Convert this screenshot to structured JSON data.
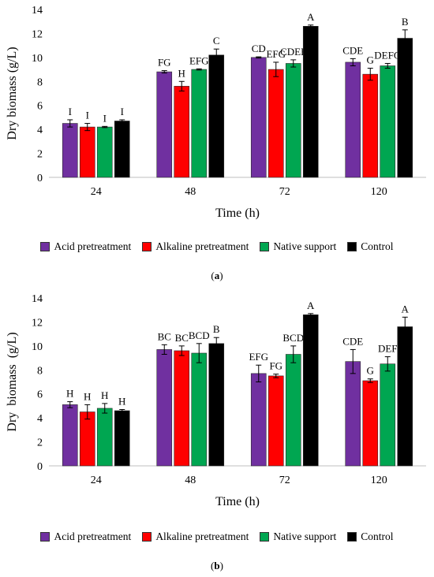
{
  "chart_data": [
    {
      "type": "bar",
      "panel_label": "a",
      "categories": [
        "24",
        "48",
        "72",
        "120"
      ],
      "xlabel": "Time (h)",
      "ylabel": "Dry biomass (g/L)",
      "ylim": [
        0,
        14
      ],
      "yticks": [
        "0",
        "2",
        "4",
        "6",
        "8",
        "10",
        "12",
        "14"
      ],
      "grid": false,
      "legend_position": "bottom",
      "series": [
        {
          "name": "Acid pretreatment",
          "color": "#7030A0",
          "values": [
            4.5,
            8.8,
            10.0,
            9.6
          ],
          "errors": [
            0.3,
            0.1,
            0.05,
            0.3
          ],
          "labels": [
            "I",
            "FG",
            "CD",
            "CDE"
          ]
        },
        {
          "name": "Alkaline pretreatment",
          "color": "#FF0000",
          "values": [
            4.2,
            7.6,
            9.0,
            8.6
          ],
          "errors": [
            0.3,
            0.4,
            0.6,
            0.5
          ],
          "labels": [
            "I",
            "H",
            "EFG",
            "G"
          ]
        },
        {
          "name": "Native support",
          "color": "#00A651",
          "values": [
            4.2,
            9.0,
            9.5,
            9.3
          ],
          "errors": [
            0.05,
            0.05,
            0.3,
            0.2
          ],
          "labels": [
            "I",
            "EFG",
            "CDEF",
            "DEFG"
          ]
        },
        {
          "name": "Control",
          "color": "#000000",
          "values": [
            4.7,
            10.2,
            12.6,
            11.6
          ],
          "errors": [
            0.1,
            0.5,
            0.1,
            0.7
          ],
          "labels": [
            "I",
            "C",
            "A",
            "B"
          ]
        }
      ]
    },
    {
      "type": "bar",
      "panel_label": "b",
      "categories": [
        "24",
        "48",
        "72",
        "120"
      ],
      "xlabel": "Time (h)",
      "ylabel": "Dry  biomass  (g/L)",
      "ylim": [
        0,
        14
      ],
      "yticks": [
        "0",
        "2",
        "4",
        "6",
        "8",
        "10",
        "12",
        "14"
      ],
      "grid": false,
      "legend_position": "bottom",
      "series": [
        {
          "name": "Acid pretreatment",
          "color": "#7030A0",
          "values": [
            5.1,
            9.7,
            7.7,
            8.7
          ],
          "errors": [
            0.25,
            0.4,
            0.7,
            1.0
          ],
          "labels": [
            "H",
            "BC",
            "EFG",
            "CDE"
          ]
        },
        {
          "name": "Alkaline pretreatment",
          "color": "#FF0000",
          "values": [
            4.5,
            9.6,
            7.5,
            7.1
          ],
          "errors": [
            0.6,
            0.4,
            0.15,
            0.15
          ],
          "labels": [
            "H",
            "BC",
            "FG",
            "G"
          ]
        },
        {
          "name": "Native support",
          "color": "#00A651",
          "values": [
            4.8,
            9.4,
            9.3,
            8.5
          ],
          "errors": [
            0.4,
            0.8,
            0.7,
            0.6
          ],
          "labels": [
            "H",
            "BCD",
            "BCD",
            "DEF"
          ]
        },
        {
          "name": "Control",
          "color": "#000000",
          "values": [
            4.6,
            10.2,
            12.6,
            11.6
          ],
          "errors": [
            0.1,
            0.5,
            0.1,
            0.8
          ],
          "labels": [
            "H",
            "B",
            "A",
            "A"
          ]
        }
      ]
    }
  ]
}
